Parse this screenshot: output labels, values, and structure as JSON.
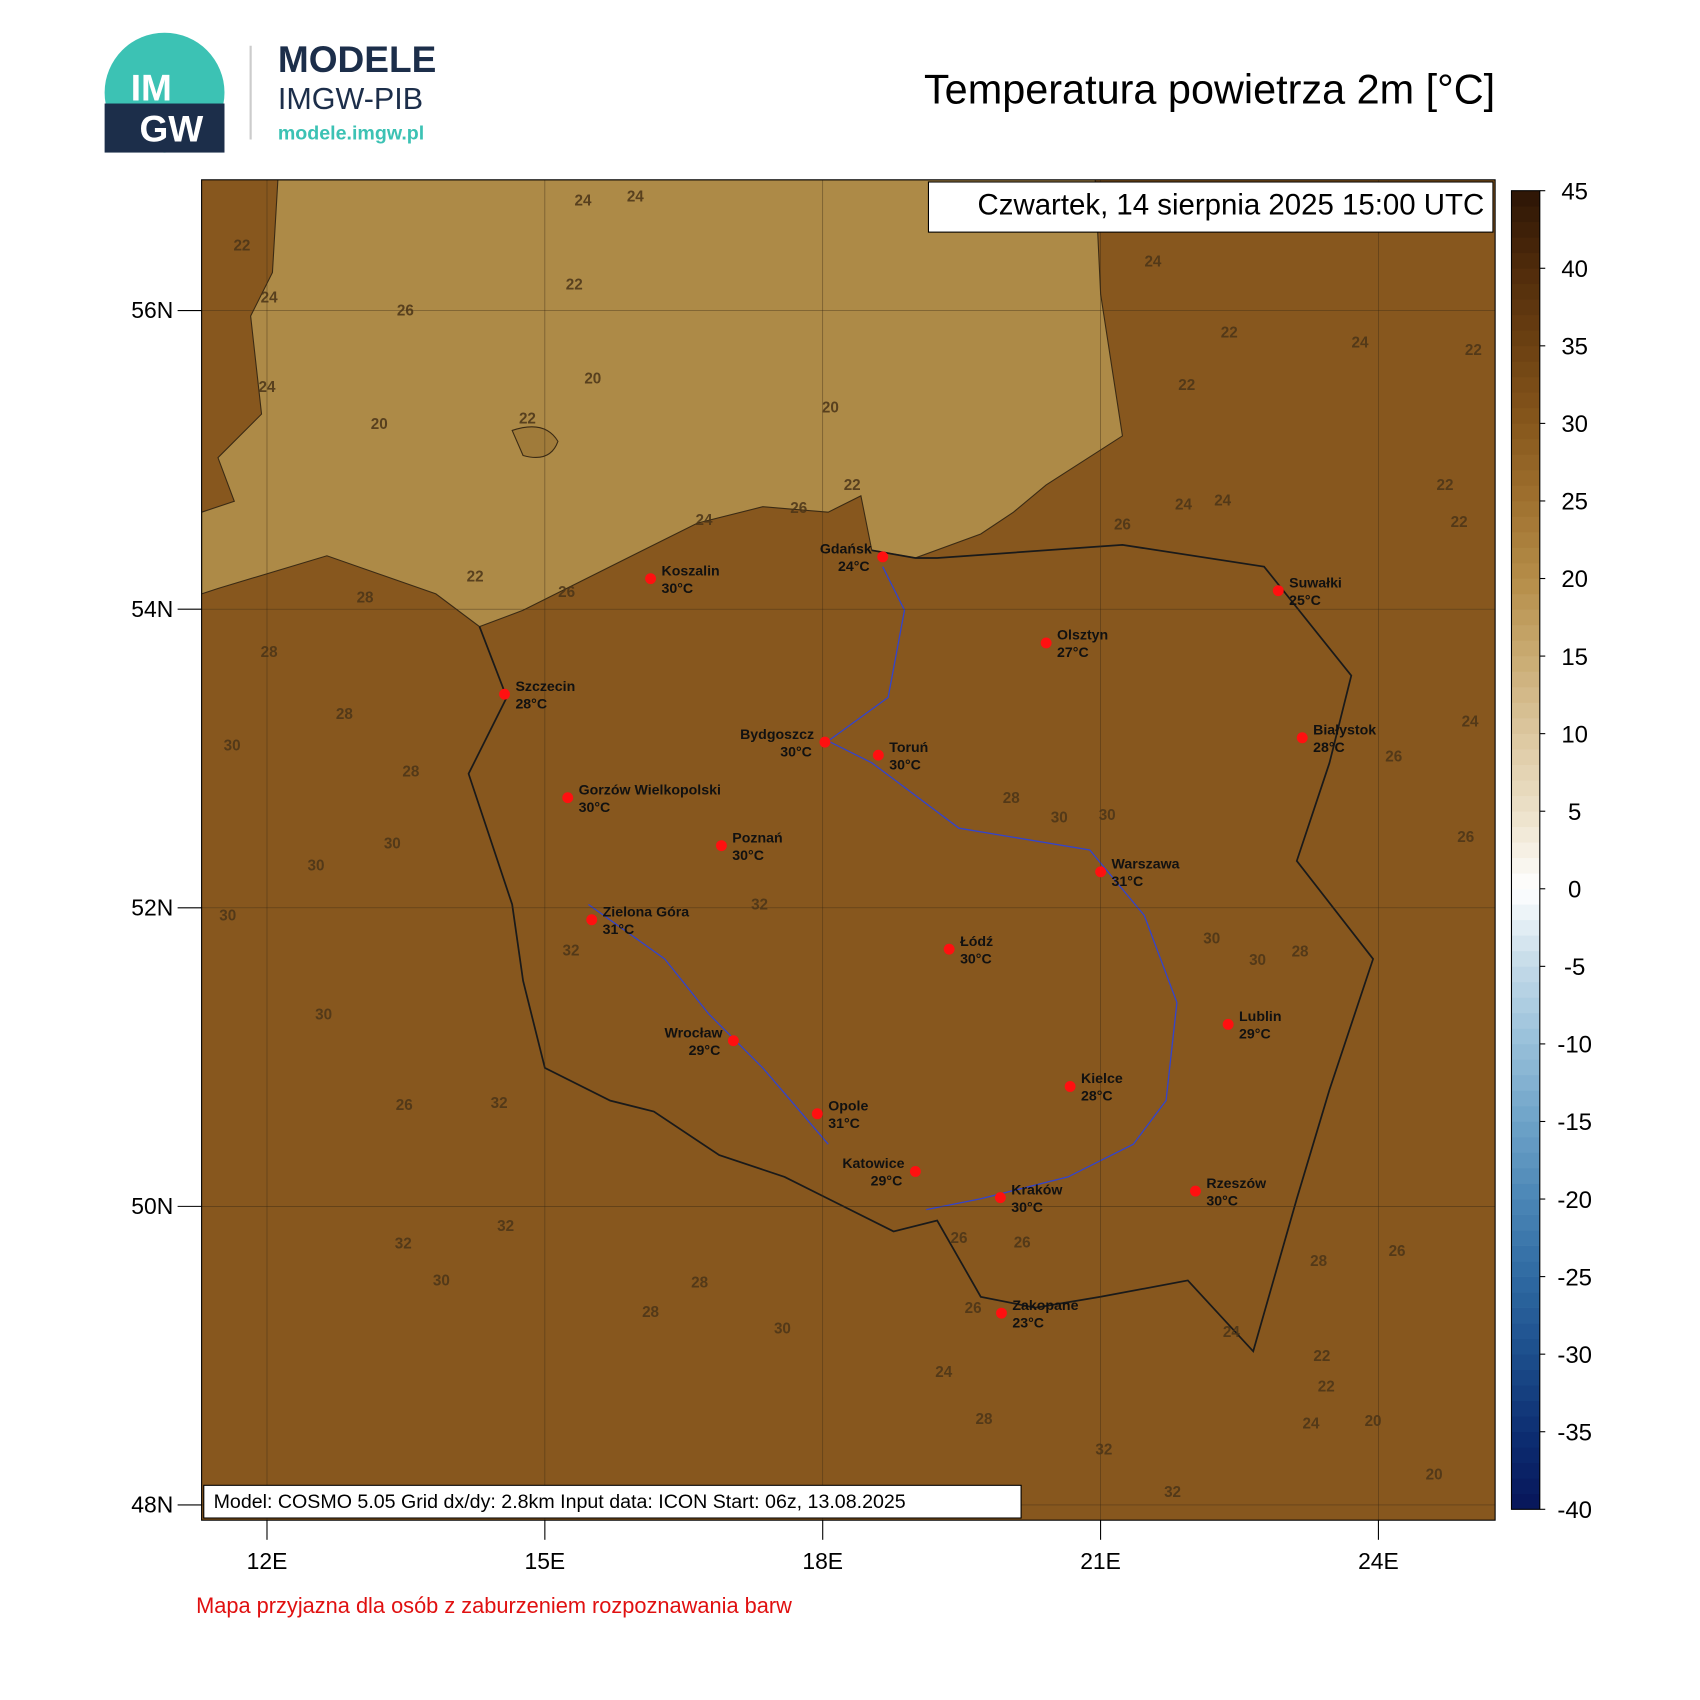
{
  "header": {
    "logo_line1": "IM",
    "logo_line2": "GW",
    "brand": "MODELE",
    "brand_sub": "IMGW-PIB",
    "url": "modele.imgw.pl"
  },
  "chart_data": {
    "type": "map",
    "title": "Temperatura powietrza 2m [°C]",
    "date": "Czwartek, 14 sierpnia 2025 15:00 UTC",
    "info": "Model: COSMO 5.05  Grid dx/dy: 2.8km  Input data: ICON  Start: 06z, 13.08.2025",
    "note": "Mapa przyjazna dla osób z zaburzeniem rozpoznawania barw",
    "xlim": [
      11.294,
      25.26
    ],
    "ylim": [
      47.898,
      56.876
    ],
    "xticks": [
      {
        "value": 12,
        "label": "12E"
      },
      {
        "value": 15,
        "label": "15E"
      },
      {
        "value": 18,
        "label": "18E"
      },
      {
        "value": 21,
        "label": "21E"
      },
      {
        "value": 24,
        "label": "24E"
      }
    ],
    "yticks": [
      {
        "value": 48,
        "label": "48N"
      },
      {
        "value": 50,
        "label": "50N"
      },
      {
        "value": 52,
        "label": "52N"
      },
      {
        "value": 54,
        "label": "54N"
      },
      {
        "value": 56,
        "label": "56N"
      }
    ],
    "grid": true,
    "colorbar": {
      "range": [
        -40,
        45
      ],
      "ticks": [
        45,
        40,
        35,
        30,
        25,
        20,
        15,
        10,
        5,
        0,
        -5,
        -10,
        -15,
        -20,
        -25,
        -30,
        -35,
        -40
      ],
      "colors": [
        "#07155a",
        "#0d2f72",
        "#1c4e8c",
        "#2f6aa2",
        "#4b86b6",
        "#6ea3c8",
        "#97bfd9",
        "#c3dae8",
        "#ffffff",
        "#ece1c9",
        "#dcc79f",
        "#c9ab72",
        "#b58d48",
        "#9f712f",
        "#87571c",
        "#6c4112",
        "#502b0b",
        "#2c1505"
      ]
    },
    "cities": [
      {
        "name": "Koszalin",
        "temp": 30,
        "label": "30°C"
      },
      {
        "name": "Gdańsk",
        "temp": 24,
        "label": "24°C"
      },
      {
        "name": "Suwałki",
        "temp": 25,
        "label": "25°C"
      },
      {
        "name": "Olsztyn",
        "temp": 27,
        "label": "27°C"
      },
      {
        "name": "Szczecin",
        "temp": 28,
        "label": "28°C"
      },
      {
        "name": "Bydgoszcz",
        "temp": 30,
        "label": "30°C"
      },
      {
        "name": "Toruń",
        "temp": 30,
        "label": "30°C"
      },
      {
        "name": "Białystok",
        "temp": 28,
        "label": "28°C"
      },
      {
        "name": "Gorzów Wielkopolski",
        "temp": 30,
        "label": "30°C"
      },
      {
        "name": "Poznań",
        "temp": 30,
        "label": "30°C"
      },
      {
        "name": "Warszawa",
        "temp": 31,
        "label": "31°C"
      },
      {
        "name": "Zielona Góra",
        "temp": 31,
        "label": "31°C"
      },
      {
        "name": "Łódź",
        "temp": 30,
        "label": "30°C"
      },
      {
        "name": "Lublin",
        "temp": 29,
        "label": "29°C"
      },
      {
        "name": "Wrocław",
        "temp": 29,
        "label": "29°C"
      },
      {
        "name": "Kielce",
        "temp": 28,
        "label": "28°C"
      },
      {
        "name": "Opole",
        "temp": 31,
        "label": "31°C"
      },
      {
        "name": "Katowice",
        "temp": 29,
        "label": "29°C"
      },
      {
        "name": "Kraków",
        "temp": 30,
        "label": "30°C"
      },
      {
        "name": "Rzeszów",
        "temp": 30,
        "label": "30°C"
      },
      {
        "name": "Zakopane",
        "temp": 23,
        "label": "23°C"
      }
    ],
    "contour_labels": [
      24,
      24,
      22,
      24,
      26,
      22,
      24,
      20,
      20,
      22,
      20,
      22,
      22,
      24,
      24,
      22,
      26,
      24,
      24,
      24,
      26,
      22,
      28,
      26,
      28,
      28,
      30,
      28,
      30,
      30,
      30,
      32,
      32,
      28,
      30,
      30,
      30,
      30,
      28,
      30,
      32,
      26,
      32,
      32,
      30,
      28,
      28,
      30,
      24,
      28,
      32,
      32,
      20,
      20,
      22,
      22,
      24,
      24,
      26,
      26,
      26,
      26,
      28,
      26,
      26,
      24,
      22,
      22,
      22
    ]
  }
}
